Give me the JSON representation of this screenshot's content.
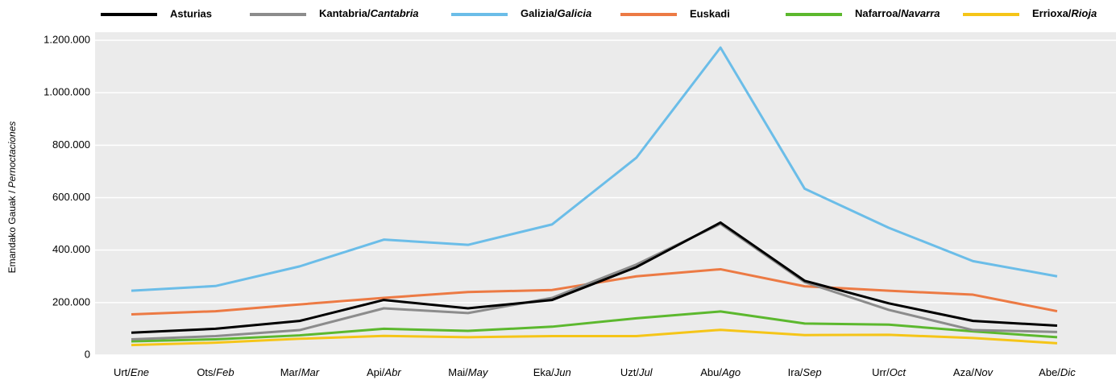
{
  "chart_data": {
    "type": "line",
    "y_label": "Emandako Gauak / Pernoctaciones",
    "categories": [
      "Urt/Ene",
      "Ots/Feb",
      "Mar/Mar",
      "Api/Abr",
      "Mai/May",
      "Eka/Jun",
      "Uzt/Jul",
      "Abu/Ago",
      "Ira/Sep",
      "Urr/Oct",
      "Aza/Nov",
      "Abe/Dic"
    ],
    "series": [
      {
        "name": "Asturias",
        "color": "#000000",
        "values": [
          85000,
          100000,
          130000,
          210000,
          178000,
          210000,
          335000,
          505000,
          283000,
          197000,
          130000,
          112000
        ]
      },
      {
        "name": "Kantabria/Cantabria",
        "color": "#8c8c8c",
        "values": [
          60000,
          72000,
          95000,
          178000,
          160000,
          218000,
          345000,
          500000,
          278000,
          172000,
          95000,
          88000
        ]
      },
      {
        "name": "Galizia/Galicia",
        "color": "#6bbde8",
        "values": [
          245000,
          263000,
          338000,
          440000,
          420000,
          498000,
          752000,
          1172000,
          634000,
          485000,
          358000,
          300000
        ]
      },
      {
        "name": "Euskadi",
        "color": "#ec7a44",
        "values": [
          155000,
          167000,
          193000,
          218000,
          240000,
          248000,
          300000,
          327000,
          262000,
          245000,
          230000,
          167000
        ]
      },
      {
        "name": "Nafarroa/Navarra",
        "color": "#5cb82e",
        "values": [
          52000,
          60000,
          75000,
          100000,
          92000,
          108000,
          140000,
          166000,
          120000,
          116000,
          90000,
          68000
        ]
      },
      {
        "name": "Errioxa/Rioja",
        "color": "#f5c518",
        "values": [
          38000,
          47000,
          62000,
          73000,
          68000,
          72000,
          72000,
          96000,
          76000,
          77000,
          65000,
          45000
        ]
      }
    ],
    "ylim": [
      0,
      1200000
    ],
    "yticks": [
      0,
      {
        "value": 200000,
        "label": "200.000"
      },
      {
        "value": 400000,
        "label": "400.000"
      },
      {
        "value": 600000,
        "label": "600.000"
      },
      {
        "value": 800000,
        "label": "800.000"
      },
      {
        "value": 1000000,
        "label": "1.000.000"
      },
      {
        "value": 1200000,
        "label": "1.200.000"
      }
    ],
    "grid": true
  }
}
